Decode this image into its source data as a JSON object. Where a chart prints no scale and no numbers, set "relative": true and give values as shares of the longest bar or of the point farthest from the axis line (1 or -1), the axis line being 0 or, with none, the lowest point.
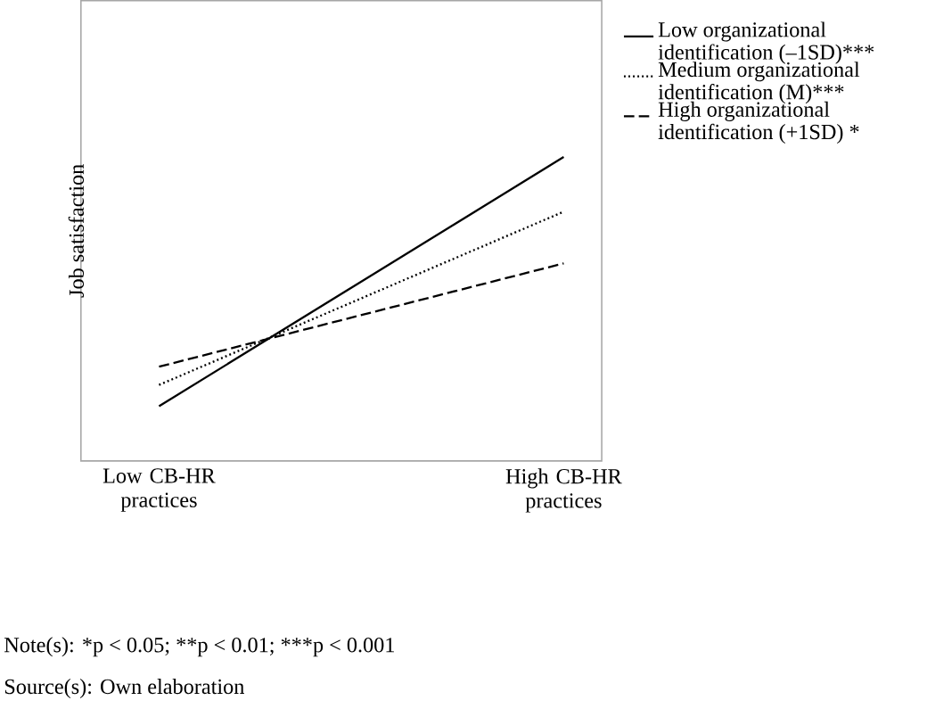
{
  "chart_data": {
    "type": "line",
    "relative": true,
    "ylabel": "Job satisfaction",
    "categories": [
      "Low CB-HR practices",
      "High CB-HR practices"
    ],
    "series": [
      {
        "name": "Low organizational identification (–1SD)***",
        "color": "#000000",
        "line_style": "solid",
        "values": [
          0.18,
          1
        ]
      },
      {
        "name": "Medium organizational identification (M)***",
        "color": "#000000",
        "line_style": "dotted",
        "values": [
          0.25,
          0.82
        ]
      },
      {
        "name": "High organizational identification (+1SD) *",
        "color": "#000000",
        "line_style": "dashed",
        "values": [
          0.31,
          0.65
        ]
      }
    ],
    "legend": "top right",
    "annotations": [
      "Note(s): *p < 0.05;",
      "**p < 0.01;",
      "***p < 0.001",
      "Source(s): Own elaboration"
    ]
  }
}
